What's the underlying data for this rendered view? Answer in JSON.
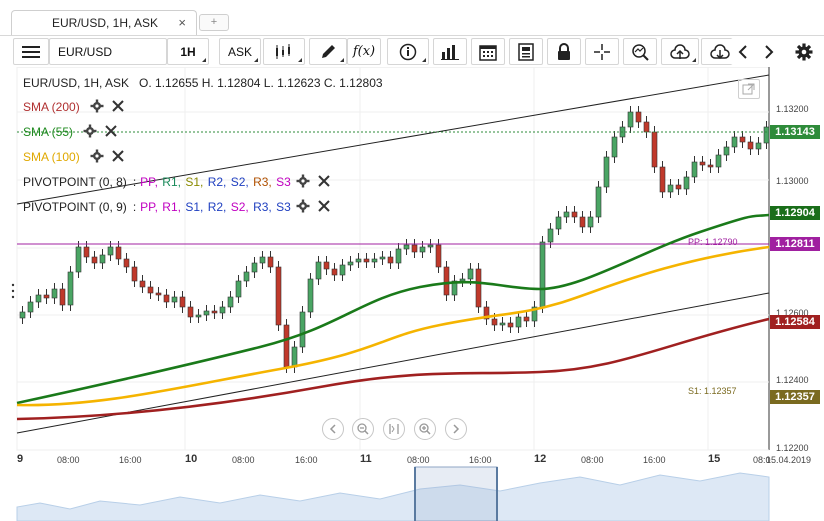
{
  "tab": {
    "title": "EUR/USD, 1H, ASK",
    "close": "×",
    "add": "+"
  },
  "toolbar": {
    "symbol": "EUR/USD",
    "timeframe": "1H",
    "side": "ASK",
    "fx_label": "f(x)"
  },
  "chart": {
    "ohlc_line": "EUR/USD, 1H, ASK   O. 1.12655 H. 1.12804 L. 1.12623 C. 1.12803",
    "indicators": [
      {
        "name": "SMA (200)",
        "color": "#b03030"
      },
      {
        "name": "SMA (55)",
        "color": "#1f8a1f"
      },
      {
        "name": "SMA (100)",
        "color": "#f0b000"
      }
    ],
    "pivot1": {
      "name": "PIVOTPOINT (0, 8)",
      "sep": ":",
      "values": [
        {
          "t": "PP",
          "c": "#c000c0"
        },
        {
          "t": "R1",
          "c": "#1a8a5a"
        },
        {
          "t": "S1",
          "c": "#8a8a00"
        },
        {
          "t": "R2",
          "c": "#2040c0"
        },
        {
          "t": "S2",
          "c": "#2040c0"
        },
        {
          "t": "R3",
          "c": "#b05000"
        },
        {
          "t": "S3",
          "c": "#c000c0"
        }
      ]
    },
    "pivot2": {
      "name": "PIVOTPOINT (0, 9)",
      "sep": ":",
      "values": [
        {
          "t": "PP",
          "c": "#c000c0"
        },
        {
          "t": "R1",
          "c": "#c000c0"
        },
        {
          "t": "S1",
          "c": "#2040c0"
        },
        {
          "t": "R2",
          "c": "#2040c0"
        },
        {
          "t": "S2",
          "c": "#c000c0"
        },
        {
          "t": "R3",
          "c": "#2040c0"
        },
        {
          "t": "S3",
          "c": "#2040c0"
        }
      ]
    },
    "price_axis": [
      "1.13200",
      "1.13000",
      "1.12600",
      "1.12400",
      "1.12200"
    ],
    "price_tags": [
      {
        "value": "1.13143",
        "color": "#2e8b3a"
      },
      {
        "value": "1.12904",
        "color": "#1a6e1a"
      },
      {
        "value": "1.12811",
        "color": "#a020a0"
      },
      {
        "value": "1.12584",
        "color": "#a02020"
      },
      {
        "value": "1.12357",
        "color": "#7a6a20"
      }
    ],
    "pivot_labels": {
      "pp": "PP: 1.12790",
      "s1": "S1: 1.12357"
    },
    "time_axis": {
      "days": [
        "9",
        "10",
        "11",
        "12",
        "15"
      ],
      "hours": [
        "08:00",
        "16:00",
        "08:00",
        "16:00",
        "08:00",
        "16:00",
        "08:00",
        "16:00",
        "08:0"
      ],
      "date": "15.04.2019"
    }
  }
}
